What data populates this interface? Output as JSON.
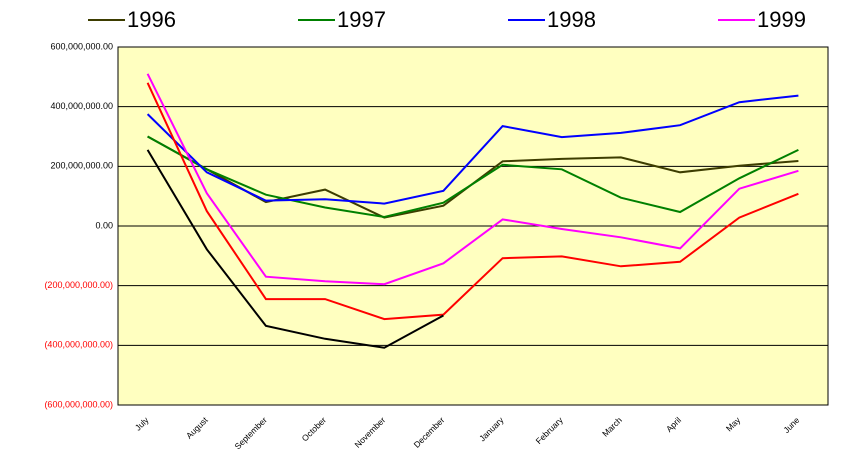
{
  "chart_data": {
    "type": "line",
    "categories": [
      "July",
      "August",
      "September",
      "October",
      "November",
      "December",
      "January",
      "February",
      "March",
      "April",
      "May",
      "June"
    ],
    "series": [
      {
        "name": "1996",
        "color": "#3d3d00",
        "values": [
          300000000,
          190000000,
          80000000,
          122000000,
          28000000,
          68000000,
          217000000,
          225000000,
          230000000,
          180000000,
          202000000,
          218000000
        ]
      },
      {
        "name": "1997",
        "color": "#008000",
        "values": [
          300000000,
          190000000,
          105000000,
          62000000,
          30000000,
          78000000,
          205000000,
          190000000,
          95000000,
          47000000,
          160000000,
          255000000
        ]
      },
      {
        "name": "1998",
        "color": "#0000ff",
        "values": [
          375000000,
          180000000,
          85000000,
          90000000,
          75000000,
          118000000,
          335000000,
          298000000,
          312000000,
          338000000,
          415000000,
          437000000
        ]
      },
      {
        "name": "1999",
        "color": "#ff00ff",
        "values": [
          510000000,
          110000000,
          -170000000,
          -185000000,
          -195000000,
          -125000000,
          22000000,
          -10000000,
          -38000000,
          -75000000,
          125000000,
          185000000
        ]
      },
      {
        "color": "#ff0000",
        "values": [
          480000000,
          50000000,
          -245000000,
          -245000000,
          -312000000,
          -297000000,
          -108000000,
          -102000000,
          -135000000,
          -120000000,
          28000000,
          108000000
        ]
      },
      {
        "color": "#000000",
        "values": [
          255000000,
          -78000000,
          -335000000,
          -378000000,
          -408000000,
          -300000000,
          null,
          null,
          null,
          null,
          null,
          null
        ]
      }
    ],
    "ylim": [
      -600000000,
      600000000
    ],
    "yticks": [
      {
        "value": 600000000,
        "label": "600,000,000.00"
      },
      {
        "value": 400000000,
        "label": "400,000,000.00"
      },
      {
        "value": 200000000,
        "label": "200,000,000.00"
      },
      {
        "value": 0,
        "label": "0.00"
      },
      {
        "value": -200000000,
        "label": "(200,000,000.00)"
      },
      {
        "value": -400000000,
        "label": "(400,000,000.00)"
      },
      {
        "value": -600000000,
        "label": "(600,000,000.00)"
      }
    ],
    "negative_tick_color": "#ff0000",
    "plot_background": "#ffffc0",
    "grid": true
  }
}
